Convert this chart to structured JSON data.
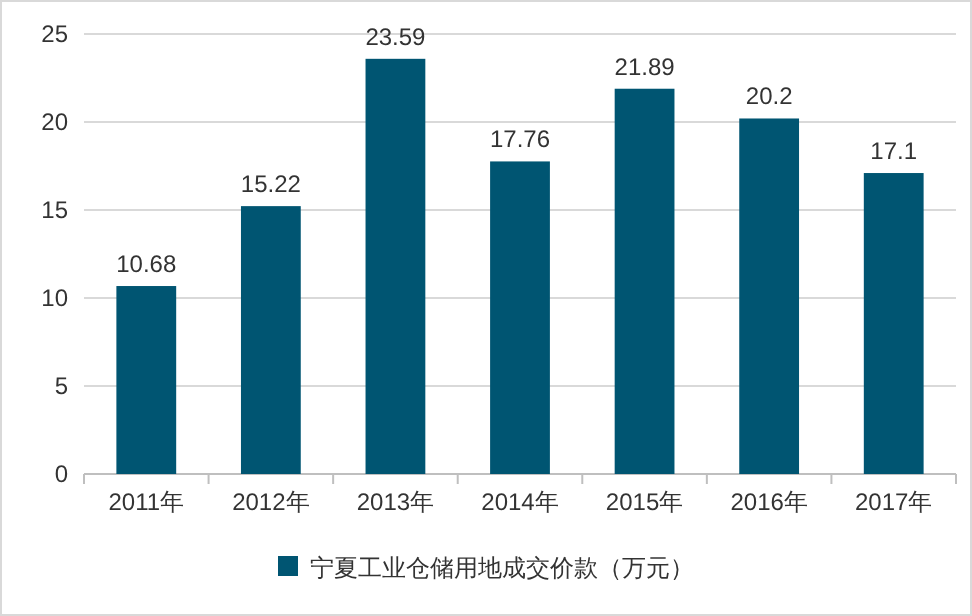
{
  "chart_data": {
    "type": "bar",
    "categories": [
      "2011年",
      "2012年",
      "2013年",
      "2014年",
      "2015年",
      "2016年",
      "2017年"
    ],
    "series": [
      {
        "name": "宁夏工业仓储用地成交价款（万元）",
        "color": "#005572",
        "values": [
          10.68,
          15.22,
          23.59,
          17.76,
          21.89,
          20.2,
          17.1
        ]
      }
    ],
    "ylim": [
      0,
      25
    ],
    "yticks": [
      0,
      5,
      10,
      15,
      20,
      25
    ],
    "grid": "y",
    "legend": "bottom",
    "data_labels": true
  }
}
